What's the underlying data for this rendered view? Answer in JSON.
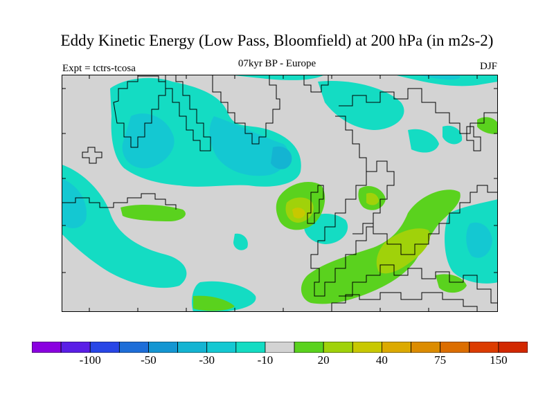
{
  "title": "Eddy Kinetic Energy (Low Pass, Bloomfield) at 200 hPa (in m2s-2)",
  "subtitle": "07kyr BP - Europe",
  "expt_label": "Expt = tctrs-tcosa",
  "season": "DJF",
  "colorbar": {
    "colors": [
      "#8a00e0",
      "#5a1ee6",
      "#2846e6",
      "#1e6ed8",
      "#1496d2",
      "#14b4d2",
      "#14c8d2",
      "#14dcc3",
      "#d3d3d3",
      "#5ad21e",
      "#a0d20a",
      "#c8c800",
      "#dcaa00",
      "#dc8c00",
      "#dc6e00",
      "#dc3c00",
      "#d22800"
    ],
    "labels": [
      "-100",
      "-50",
      "-30",
      "-10",
      "20",
      "40",
      "75",
      "150"
    ]
  },
  "map": {
    "background_color": "#d3d3d3",
    "field_colors": {
      "neg_light": "#14dcc3",
      "neg_mid": "#14c8d2",
      "neg_strong": "#14b4d2",
      "pos_light": "#5ad21e",
      "pos_mid": "#a0d20a",
      "pos_strong": "#c8c800"
    }
  }
}
